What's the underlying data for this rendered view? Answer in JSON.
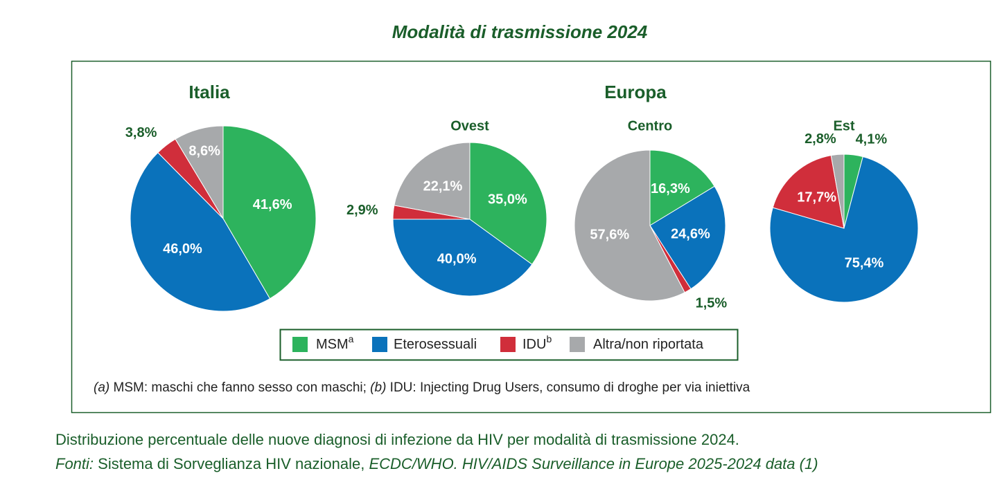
{
  "title": "Modalità di trasmissione 2024",
  "group_title": "Europa",
  "chart_data": [
    {
      "type": "pie",
      "title": "Italia",
      "categories": [
        "MSM",
        "Eterosessuali",
        "IDU",
        "Altra/non riportata"
      ],
      "values": [
        41.6,
        46.0,
        3.8,
        8.6
      ],
      "value_labels": [
        "41,6%",
        "46,0%",
        "3,8%",
        "8,6%"
      ],
      "colors": [
        "#2db35d",
        "#0a72bb",
        "#d02e3b",
        "#a7a9ab"
      ]
    },
    {
      "type": "pie",
      "title": "Ovest",
      "categories": [
        "MSM",
        "Eterosessuali",
        "IDU",
        "Altra/non riportata"
      ],
      "values": [
        35.0,
        40.0,
        2.9,
        22.1
      ],
      "value_labels": [
        "35,0%",
        "40,0%",
        "2,9%",
        "22,1%"
      ],
      "colors": [
        "#2db35d",
        "#0a72bb",
        "#d02e3b",
        "#a7a9ab"
      ]
    },
    {
      "type": "pie",
      "title": "Centro",
      "categories": [
        "MSM",
        "Eterosessuali",
        "IDU",
        "Altra/non riportata"
      ],
      "values": [
        16.3,
        24.6,
        1.5,
        57.6
      ],
      "value_labels": [
        "16,3%",
        "24,6%",
        "1,5%",
        "57,6%"
      ],
      "colors": [
        "#2db35d",
        "#0a72bb",
        "#d02e3b",
        "#a7a9ab"
      ]
    },
    {
      "type": "pie",
      "title": "Est",
      "categories": [
        "MSM",
        "Eterosessuali",
        "IDU",
        "Altra/non riportata"
      ],
      "values": [
        4.1,
        75.4,
        17.7,
        2.8
      ],
      "value_labels": [
        "4,1%",
        "75,4%",
        "17,7%",
        "2,8%"
      ],
      "colors": [
        "#2db35d",
        "#0a72bb",
        "#d02e3b",
        "#a7a9ab"
      ]
    }
  ],
  "legend_superscripts": {
    "0": "a",
    "2": "b"
  },
  "footnote": [
    {
      "text": "(a)",
      "italic": true
    },
    {
      "text": " MSM: maschi che fanno sesso con maschi; ",
      "italic": false
    },
    {
      "text": "(b)",
      "italic": true
    },
    {
      "text": " IDU: Injecting Drug Users, consumo di droghe per via iniettiva",
      "italic": false
    }
  ],
  "caption": {
    "line1": "Distribuzione percentuale delle nuove diagnosi di infezione da HIV per modalità di trasmissione 2024.",
    "line2": [
      {
        "text": "Fonti:",
        "italic": true
      },
      {
        "text": " Sistema di Sorveglianza HIV nazionale, ",
        "italic": false
      },
      {
        "text": "ECDC/WHO. HIV/AIDS Surveillance in Europe 2025-2024 data (1)",
        "italic": true
      }
    ]
  }
}
